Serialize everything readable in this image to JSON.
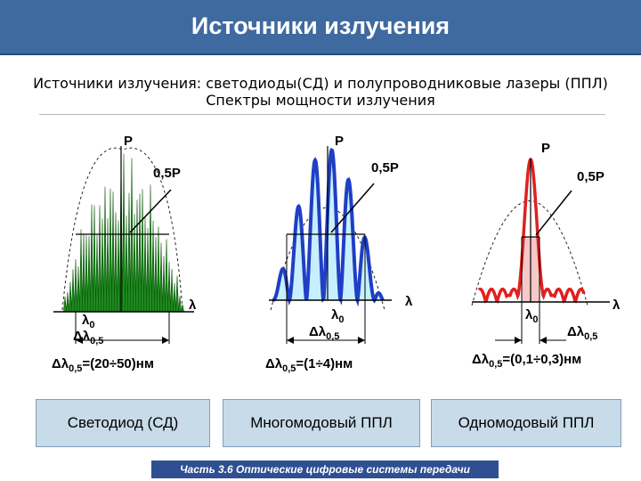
{
  "header": {
    "title": "Источники излучения"
  },
  "intro": {
    "line1": "Источники излучения: светодиоды(СД) и полупроводниковые лазеры (ППЛ)",
    "line2": "Спектры мощности излучения"
  },
  "panels": [
    {
      "p_label": "P",
      "half_label": "0,5P",
      "lambda_label": "λ",
      "lambda0_label": "λ",
      "lambda0_sub": "0",
      "delta_label": "Δλ",
      "delta_sub": "0,5",
      "formula_main": "Δλ",
      "formula_sub": "0,5",
      "formula_value": "=(20÷50)нм",
      "caption": "Светодиод (СД)",
      "color": "#1e8a1e"
    },
    {
      "p_label": "P",
      "half_label": "0,5P",
      "lambda_label": "λ",
      "lambda0_label": "λ",
      "lambda0_sub": "0",
      "delta_label": "Δλ",
      "delta_sub": "0,5",
      "formula_main": "Δλ",
      "formula_sub": "0,5",
      "formula_value": "=(1÷4)нм",
      "caption": "Многомодовый ППЛ",
      "color": "#1f3fc4",
      "fill": "#c7efff"
    },
    {
      "p_label": "P",
      "half_label": "0,5P",
      "lambda_label": "λ",
      "lambda0_label": "λ",
      "lambda0_sub": "0",
      "delta_label": "Δλ",
      "delta_sub": "0,5",
      "formula_main": "Δλ",
      "formula_sub": "0,5",
      "formula_value": "=(0,1÷0,3)нм",
      "caption": "Одномодовый ППЛ",
      "color": "#e02020",
      "fill": "#f6c8c8"
    }
  ],
  "footer": {
    "text": "Часть 3.6 Оптические цифровые системы передачи"
  }
}
